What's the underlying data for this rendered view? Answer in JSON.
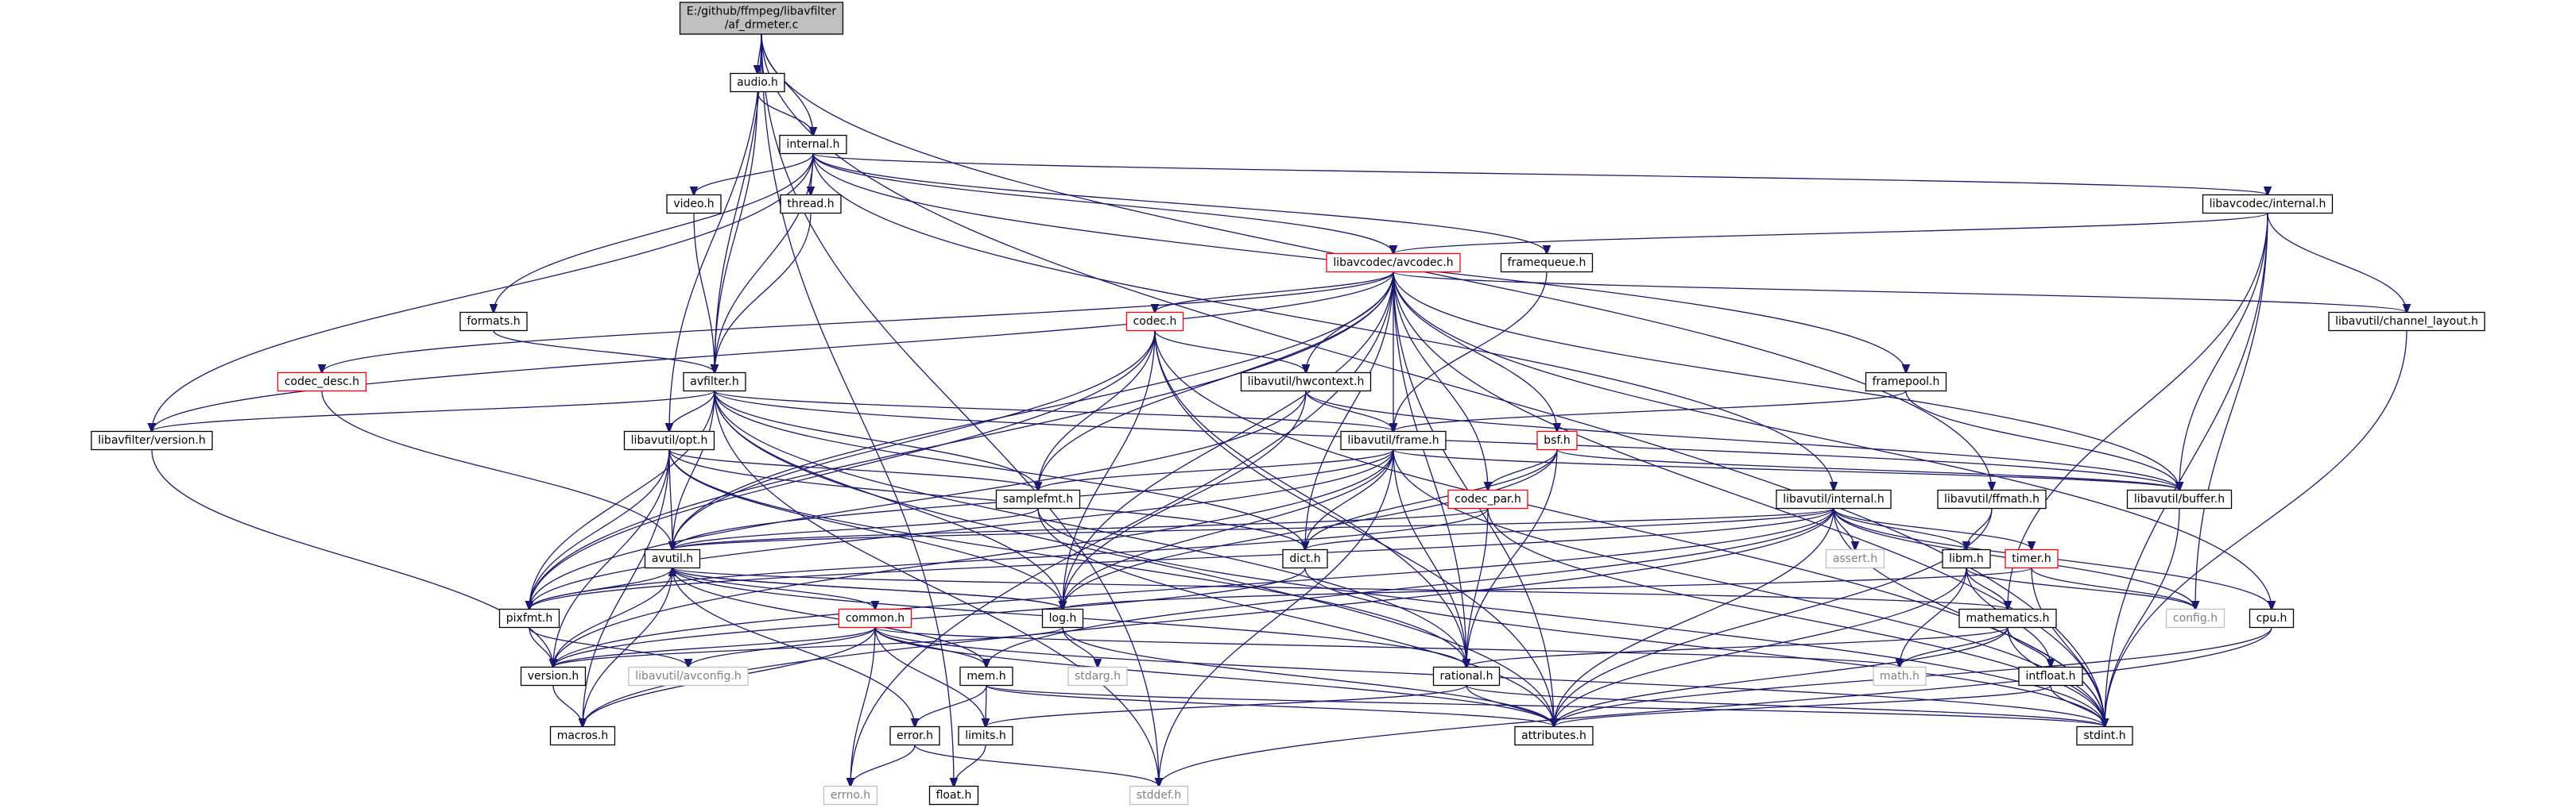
{
  "graph": {
    "colors": {
      "edge": "#191970",
      "node_border": "#000000",
      "red_border": "#ff0000",
      "grey_border": "#bfbfbf",
      "root_fill": "#bfbfbf",
      "text": "#000000",
      "grey_text": "#808080"
    },
    "nodes": [
      {
        "id": "root",
        "lines": [
          "E:/github/ffmpeg/libavfilter",
          "/af_drmeter.c"
        ],
        "style": "root"
      },
      {
        "id": "audio",
        "lines": [
          "audio.h"
        ],
        "style": "normal"
      },
      {
        "id": "internal",
        "lines": [
          "internal.h"
        ],
        "style": "normal"
      },
      {
        "id": "video",
        "lines": [
          "video.h"
        ],
        "style": "normal"
      },
      {
        "id": "thread",
        "lines": [
          "thread.h"
        ],
        "style": "normal"
      },
      {
        "id": "lavc_internal",
        "lines": [
          "libavcodec/internal.h"
        ],
        "style": "normal"
      },
      {
        "id": "avcodec",
        "lines": [
          "libavcodec/avcodec.h"
        ],
        "style": "red"
      },
      {
        "id": "framequeue",
        "lines": [
          "framequeue.h"
        ],
        "style": "normal"
      },
      {
        "id": "formats",
        "lines": [
          "formats.h"
        ],
        "style": "normal"
      },
      {
        "id": "codec",
        "lines": [
          "codec.h"
        ],
        "style": "red"
      },
      {
        "id": "channel_layout",
        "lines": [
          "libavutil/channel_layout.h"
        ],
        "style": "normal"
      },
      {
        "id": "codec_desc",
        "lines": [
          "codec_desc.h"
        ],
        "style": "red"
      },
      {
        "id": "avfilter",
        "lines": [
          "avfilter.h"
        ],
        "style": "normal"
      },
      {
        "id": "hwcontext",
        "lines": [
          "libavutil/hwcontext.h"
        ],
        "style": "normal"
      },
      {
        "id": "framepool",
        "lines": [
          "framepool.h"
        ],
        "style": "normal"
      },
      {
        "id": "lavfi_version",
        "lines": [
          "libavfilter/version.h"
        ],
        "style": "normal"
      },
      {
        "id": "opt",
        "lines": [
          "libavutil/opt.h"
        ],
        "style": "normal"
      },
      {
        "id": "frame",
        "lines": [
          "libavutil/frame.h"
        ],
        "style": "normal"
      },
      {
        "id": "bsf",
        "lines": [
          "bsf.h"
        ],
        "style": "red"
      },
      {
        "id": "samplefmt",
        "lines": [
          "samplefmt.h"
        ],
        "style": "normal"
      },
      {
        "id": "codec_par",
        "lines": [
          "codec_par.h"
        ],
        "style": "red"
      },
      {
        "id": "lavu_internal",
        "lines": [
          "libavutil/internal.h"
        ],
        "style": "normal"
      },
      {
        "id": "ffmath",
        "lines": [
          "libavutil/ffmath.h"
        ],
        "style": "normal"
      },
      {
        "id": "buffer",
        "lines": [
          "libavutil/buffer.h"
        ],
        "style": "normal"
      },
      {
        "id": "avutil",
        "lines": [
          "avutil.h"
        ],
        "style": "normal"
      },
      {
        "id": "dict",
        "lines": [
          "dict.h"
        ],
        "style": "normal"
      },
      {
        "id": "assert",
        "lines": [
          "assert.h"
        ],
        "style": "grey"
      },
      {
        "id": "libm",
        "lines": [
          "libm.h"
        ],
        "style": "normal"
      },
      {
        "id": "timer",
        "lines": [
          "timer.h"
        ],
        "style": "red"
      },
      {
        "id": "pixfmt",
        "lines": [
          "pixfmt.h"
        ],
        "style": "normal"
      },
      {
        "id": "common",
        "lines": [
          "common.h"
        ],
        "style": "red"
      },
      {
        "id": "log",
        "lines": [
          "log.h"
        ],
        "style": "normal"
      },
      {
        "id": "mathematics",
        "lines": [
          "mathematics.h"
        ],
        "style": "normal"
      },
      {
        "id": "config",
        "lines": [
          "config.h"
        ],
        "style": "grey"
      },
      {
        "id": "cpu",
        "lines": [
          "cpu.h"
        ],
        "style": "normal"
      },
      {
        "id": "version",
        "lines": [
          "version.h"
        ],
        "style": "normal"
      },
      {
        "id": "avconfig",
        "lines": [
          "libavutil/avconfig.h"
        ],
        "style": "grey"
      },
      {
        "id": "mem",
        "lines": [
          "mem.h"
        ],
        "style": "normal"
      },
      {
        "id": "stdarg",
        "lines": [
          "stdarg.h"
        ],
        "style": "grey"
      },
      {
        "id": "rational",
        "lines": [
          "rational.h"
        ],
        "style": "normal"
      },
      {
        "id": "math",
        "lines": [
          "math.h"
        ],
        "style": "grey"
      },
      {
        "id": "intfloat",
        "lines": [
          "intfloat.h"
        ],
        "style": "normal"
      },
      {
        "id": "macros",
        "lines": [
          "macros.h"
        ],
        "style": "normal"
      },
      {
        "id": "error",
        "lines": [
          "error.h"
        ],
        "style": "normal"
      },
      {
        "id": "limits",
        "lines": [
          "limits.h"
        ],
        "style": "normal"
      },
      {
        "id": "attributes",
        "lines": [
          "attributes.h"
        ],
        "style": "normal"
      },
      {
        "id": "stdint",
        "lines": [
          "stdint.h"
        ],
        "style": "normal"
      },
      {
        "id": "errno",
        "lines": [
          "errno.h"
        ],
        "style": "grey"
      },
      {
        "id": "float",
        "lines": [
          "float.h"
        ],
        "style": "normal"
      },
      {
        "id": "stddef",
        "lines": [
          "stddef.h"
        ],
        "style": "grey"
      }
    ],
    "edges": [
      [
        "root",
        "audio"
      ],
      [
        "root",
        "internal"
      ],
      [
        "root",
        "avfilter"
      ],
      [
        "root",
        "opt"
      ],
      [
        "root",
        "ffmath"
      ],
      [
        "root",
        "stdint"
      ],
      [
        "root",
        "float"
      ],
      [
        "root",
        "stddef"
      ],
      [
        "audio",
        "internal"
      ],
      [
        "audio",
        "avfilter"
      ],
      [
        "internal",
        "video"
      ],
      [
        "internal",
        "thread"
      ],
      [
        "internal",
        "lavc_internal"
      ],
      [
        "internal",
        "avcodec"
      ],
      [
        "internal",
        "framequeue"
      ],
      [
        "internal",
        "formats"
      ],
      [
        "internal",
        "avfilter"
      ],
      [
        "internal",
        "lavfi_version"
      ],
      [
        "internal",
        "framepool"
      ],
      [
        "internal",
        "lavu_internal"
      ],
      [
        "video",
        "avfilter"
      ],
      [
        "thread",
        "avfilter"
      ],
      [
        "lavc_internal",
        "avcodec"
      ],
      [
        "lavc_internal",
        "channel_layout"
      ],
      [
        "lavc_internal",
        "buffer"
      ],
      [
        "lavc_internal",
        "mathematics"
      ],
      [
        "lavc_internal",
        "config"
      ],
      [
        "lavc_internal",
        "stdint"
      ],
      [
        "avcodec",
        "codec"
      ],
      [
        "avcodec",
        "codec_desc"
      ],
      [
        "avcodec",
        "hwcontext"
      ],
      [
        "avcodec",
        "frame"
      ],
      [
        "avcodec",
        "bsf"
      ],
      [
        "avcodec",
        "codec_par"
      ],
      [
        "avcodec",
        "samplefmt"
      ],
      [
        "avcodec",
        "avutil"
      ],
      [
        "avcodec",
        "buffer"
      ],
      [
        "avcodec",
        "channel_layout"
      ],
      [
        "avcodec",
        "dict"
      ],
      [
        "avcodec",
        "log"
      ],
      [
        "avcodec",
        "pixfmt"
      ],
      [
        "avcodec",
        "rational"
      ],
      [
        "avcodec",
        "attributes"
      ],
      [
        "avcodec",
        "cpu"
      ],
      [
        "avcodec",
        "stdint"
      ],
      [
        "avcodec",
        "errno"
      ],
      [
        "avcodec",
        "lavfi_version"
      ],
      [
        "framequeue",
        "frame"
      ],
      [
        "formats",
        "avfilter"
      ],
      [
        "codec",
        "hwcontext"
      ],
      [
        "codec",
        "samplefmt"
      ],
      [
        "codec",
        "avutil"
      ],
      [
        "codec",
        "log"
      ],
      [
        "codec",
        "pixfmt"
      ],
      [
        "codec",
        "rational"
      ],
      [
        "codec",
        "attributes"
      ],
      [
        "codec",
        "stdint"
      ],
      [
        "channel_layout",
        "stdint"
      ],
      [
        "codec_desc",
        "avutil"
      ],
      [
        "avfilter",
        "lavfi_version"
      ],
      [
        "avfilter",
        "opt"
      ],
      [
        "avfilter",
        "frame"
      ],
      [
        "avfilter",
        "samplefmt"
      ],
      [
        "avfilter",
        "avutil"
      ],
      [
        "avfilter",
        "buffer"
      ],
      [
        "avfilter",
        "dict"
      ],
      [
        "avfilter",
        "log"
      ],
      [
        "avfilter",
        "pixfmt"
      ],
      [
        "avfilter",
        "rational"
      ],
      [
        "avfilter",
        "attributes"
      ],
      [
        "avfilter",
        "stddef"
      ],
      [
        "hwcontext",
        "frame"
      ],
      [
        "hwcontext",
        "buffer"
      ],
      [
        "hwcontext",
        "pixfmt"
      ],
      [
        "hwcontext",
        "log"
      ],
      [
        "framepool",
        "frame"
      ],
      [
        "framepool",
        "buffer"
      ],
      [
        "lavfi_version",
        "version"
      ],
      [
        "opt",
        "samplefmt"
      ],
      [
        "opt",
        "avutil"
      ],
      [
        "opt",
        "dict"
      ],
      [
        "opt",
        "log"
      ],
      [
        "opt",
        "pixfmt"
      ],
      [
        "opt",
        "rational"
      ],
      [
        "opt",
        "version"
      ],
      [
        "opt",
        "macros"
      ],
      [
        "frame",
        "samplefmt"
      ],
      [
        "frame",
        "avutil"
      ],
      [
        "frame",
        "buffer"
      ],
      [
        "frame",
        "dict"
      ],
      [
        "frame",
        "pixfmt"
      ],
      [
        "frame",
        "rational"
      ],
      [
        "frame",
        "log"
      ],
      [
        "frame",
        "stdint"
      ],
      [
        "frame",
        "stddef"
      ],
      [
        "frame",
        "version"
      ],
      [
        "bsf",
        "codec_par"
      ],
      [
        "bsf",
        "dict"
      ],
      [
        "bsf",
        "log"
      ],
      [
        "bsf",
        "rational"
      ],
      [
        "bsf",
        "buffer"
      ],
      [
        "samplefmt",
        "avutil"
      ],
      [
        "samplefmt",
        "attributes"
      ],
      [
        "samplefmt",
        "stdint"
      ],
      [
        "codec_par",
        "avutil"
      ],
      [
        "codec_par",
        "pixfmt"
      ],
      [
        "codec_par",
        "rational"
      ],
      [
        "codec_par",
        "stdint"
      ],
      [
        "lavu_internal",
        "assert"
      ],
      [
        "lavu_internal",
        "libm"
      ],
      [
        "lavu_internal",
        "timer"
      ],
      [
        "lavu_internal",
        "config"
      ],
      [
        "lavu_internal",
        "dict"
      ],
      [
        "lavu_internal",
        "avutil"
      ],
      [
        "lavu_internal",
        "pixfmt"
      ],
      [
        "lavu_internal",
        "version"
      ],
      [
        "lavu_internal",
        "mem"
      ],
      [
        "lavu_internal",
        "attributes"
      ],
      [
        "lavu_internal",
        "macros"
      ],
      [
        "lavu_internal",
        "cpu"
      ],
      [
        "lavu_internal",
        "stdint"
      ],
      [
        "ffmath",
        "libm"
      ],
      [
        "ffmath",
        "attributes"
      ],
      [
        "buffer",
        "stdint"
      ],
      [
        "avutil",
        "common"
      ],
      [
        "avutil",
        "error"
      ],
      [
        "avutil",
        "rational"
      ],
      [
        "avutil",
        "version"
      ],
      [
        "avutil",
        "macros"
      ],
      [
        "avutil",
        "mathematics"
      ],
      [
        "avutil",
        "log"
      ],
      [
        "avutil",
        "pixfmt"
      ],
      [
        "dict",
        "stdint"
      ],
      [
        "dict",
        "version"
      ],
      [
        "libm",
        "mathematics"
      ],
      [
        "libm",
        "intfloat"
      ],
      [
        "libm",
        "math"
      ],
      [
        "libm",
        "config"
      ],
      [
        "libm",
        "attributes"
      ],
      [
        "timer",
        "log"
      ],
      [
        "timer",
        "config"
      ],
      [
        "timer",
        "stdint"
      ],
      [
        "pixfmt",
        "avconfig"
      ],
      [
        "pixfmt",
        "version"
      ],
      [
        "common",
        "mem"
      ],
      [
        "common",
        "attributes"
      ],
      [
        "common",
        "macros"
      ],
      [
        "common",
        "version"
      ],
      [
        "common",
        "errno"
      ],
      [
        "common",
        "limits"
      ],
      [
        "common",
        "math"
      ],
      [
        "common",
        "stdint"
      ],
      [
        "common",
        "avconfig"
      ],
      [
        "log",
        "version"
      ],
      [
        "log",
        "stdarg"
      ],
      [
        "log",
        "avutil"
      ],
      [
        "log",
        "attributes"
      ],
      [
        "mathematics",
        "rational"
      ],
      [
        "mathematics",
        "intfloat"
      ],
      [
        "mathematics",
        "math"
      ],
      [
        "mathematics",
        "attributes"
      ],
      [
        "mathematics",
        "stdint"
      ],
      [
        "cpu",
        "attributes"
      ],
      [
        "cpu",
        "stddef"
      ],
      [
        "version",
        "macros"
      ],
      [
        "mem",
        "error"
      ],
      [
        "mem",
        "limits"
      ],
      [
        "mem",
        "attributes"
      ],
      [
        "mem",
        "stdint"
      ],
      [
        "mem",
        "avutil"
      ],
      [
        "rational",
        "stdint"
      ],
      [
        "rational",
        "limits"
      ],
      [
        "rational",
        "attributes"
      ],
      [
        "intfloat",
        "stdint"
      ],
      [
        "intfloat",
        "attributes"
      ],
      [
        "error",
        "errno"
      ],
      [
        "error",
        "stddef"
      ],
      [
        "limits",
        "float"
      ]
    ]
  }
}
